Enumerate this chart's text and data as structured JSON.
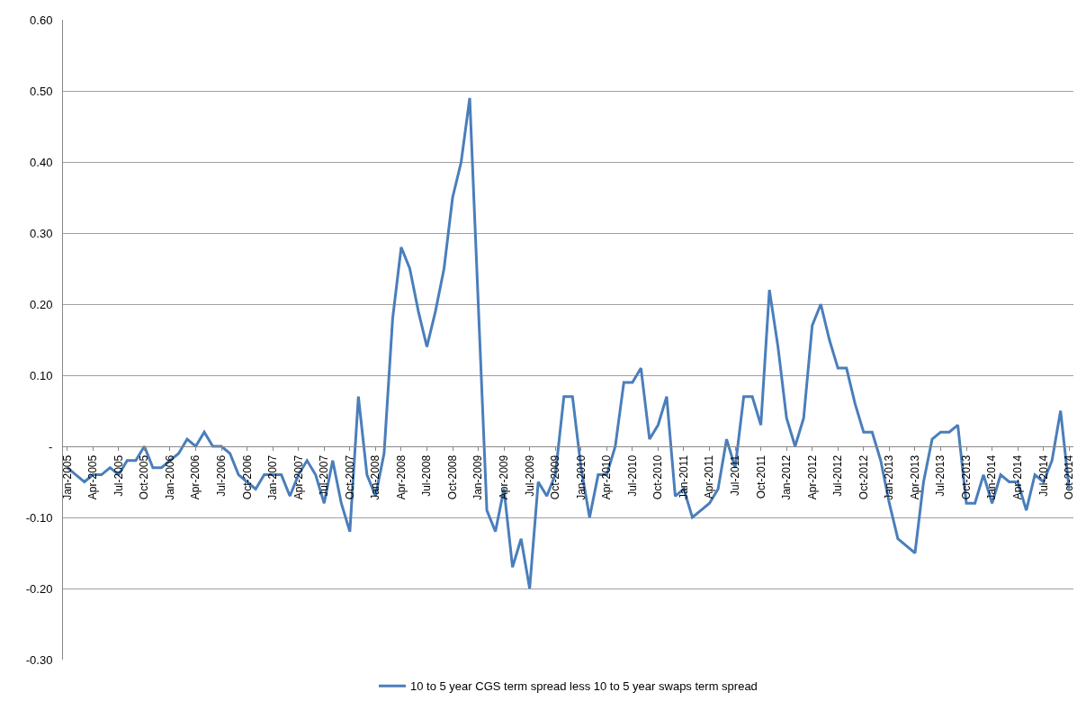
{
  "chart_data": {
    "type": "line",
    "categories": [
      "Jan-2005",
      null,
      null,
      "Apr-2005",
      null,
      null,
      "Jul-2005",
      null,
      null,
      "Oct-2005",
      null,
      null,
      "Jan-2006",
      null,
      null,
      "Apr-2006",
      null,
      null,
      "Jul-2006",
      null,
      null,
      "Oct-2006",
      null,
      null,
      "Jan-2007",
      null,
      null,
      "Apr-2007",
      null,
      null,
      "Jul-2007",
      null,
      null,
      "Oct-2007",
      null,
      null,
      "Jan-2008",
      null,
      null,
      "Apr-2008",
      null,
      null,
      "Jul-2008",
      null,
      null,
      "Oct-2008",
      null,
      null,
      "Jan-2009",
      null,
      null,
      "Apr-2009",
      null,
      null,
      "Jul-2009",
      null,
      null,
      "Oct-2009",
      null,
      null,
      "Jan-2010",
      null,
      null,
      "Apr-2010",
      null,
      null,
      "Jul-2010",
      null,
      null,
      "Oct-2010",
      null,
      null,
      "Jan-2011",
      null,
      null,
      "Apr-2011",
      null,
      null,
      "Jul-2011",
      null,
      null,
      "Oct-2011",
      null,
      null,
      "Jan-2012",
      null,
      null,
      "Apr-2012",
      null,
      null,
      "Jul-2012",
      null,
      null,
      "Oct-2012",
      null,
      null,
      "Jan-2013",
      null,
      null,
      "Apr-2013",
      null,
      null,
      "Jul-2013",
      null,
      null,
      "Oct-2013",
      null,
      null,
      "Jan-2014",
      null,
      null,
      "Apr-2014",
      null,
      null,
      "Jul-2014",
      null,
      null,
      "Oct-2014"
    ],
    "series": [
      {
        "name": "10 to 5 year CGS term spread less 10 to 5 year swaps term spread",
        "color": "#4a7ebb",
        "values": [
          -0.03,
          -0.04,
          -0.05,
          -0.04,
          -0.04,
          -0.03,
          -0.04,
          -0.02,
          -0.02,
          0.0,
          -0.03,
          -0.03,
          -0.02,
          -0.01,
          0.01,
          0.0,
          0.02,
          0.0,
          0.0,
          -0.01,
          -0.04,
          -0.05,
          -0.06,
          -0.04,
          -0.04,
          -0.04,
          -0.07,
          -0.04,
          -0.02,
          -0.04,
          -0.08,
          -0.02,
          -0.08,
          -0.12,
          0.07,
          -0.04,
          -0.07,
          -0.01,
          0.18,
          0.28,
          0.25,
          0.19,
          0.14,
          0.19,
          0.25,
          0.35,
          0.4,
          0.49,
          0.2,
          -0.09,
          -0.12,
          -0.06,
          -0.17,
          -0.13,
          -0.2,
          -0.05,
          -0.07,
          -0.04,
          0.07,
          0.07,
          -0.03,
          -0.1,
          -0.04,
          -0.04,
          0.0,
          0.09,
          0.09,
          0.11,
          0.01,
          0.03,
          0.07,
          -0.07,
          -0.06,
          -0.1,
          -0.09,
          -0.08,
          -0.06,
          0.01,
          -0.03,
          0.07,
          0.07,
          0.03,
          0.22,
          0.14,
          0.04,
          0.0,
          0.04,
          0.17,
          0.2,
          0.15,
          0.11,
          0.11,
          0.06,
          0.02,
          0.02,
          -0.02,
          -0.08,
          -0.13,
          -0.14,
          -0.15,
          -0.05,
          0.01,
          0.02,
          0.02,
          0.03,
          -0.08,
          -0.08,
          -0.04,
          -0.08,
          -0.04,
          -0.05,
          -0.05,
          -0.09,
          -0.04,
          -0.05,
          -0.02,
          0.05,
          -0.06
        ]
      }
    ],
    "ylim": [
      -0.3,
      0.6
    ],
    "yticks": [
      {
        "value": -0.3,
        "label": "-0.30"
      },
      {
        "value": -0.2,
        "label": "-0.20"
      },
      {
        "value": -0.1,
        "label": "-0.10"
      },
      {
        "value": 0,
        "label": "-"
      },
      {
        "value": 0.1,
        "label": "0.10"
      },
      {
        "value": 0.2,
        "label": "0.20"
      },
      {
        "value": 0.3,
        "label": "0.30"
      },
      {
        "value": 0.4,
        "label": "0.40"
      },
      {
        "value": 0.5,
        "label": "0.50"
      },
      {
        "value": 0.6,
        "label": "0.60"
      }
    ],
    "grid": "y",
    "legend": "bottom",
    "marker": "none",
    "line_style": "solid"
  }
}
